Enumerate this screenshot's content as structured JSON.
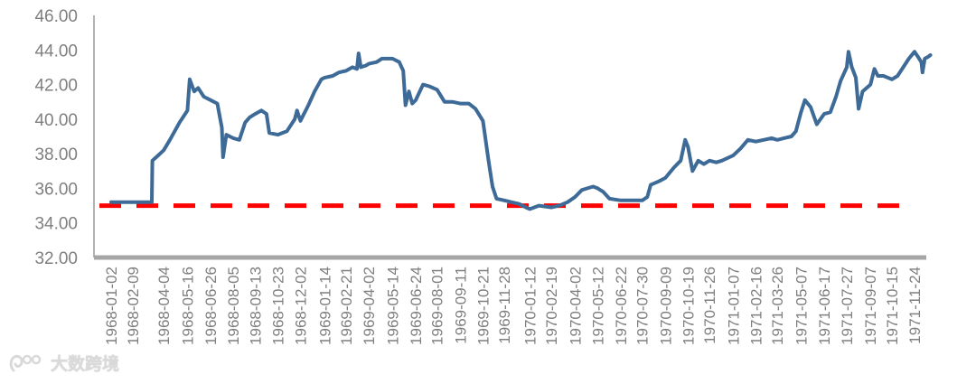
{
  "chart_data": {
    "type": "line",
    "title": "",
    "xlabel": "",
    "ylabel": "",
    "ylim": [
      32,
      46
    ],
    "y_ticks": [
      "32.00",
      "34.00",
      "36.00",
      "38.00",
      "40.00",
      "42.00",
      "44.00",
      "46.00"
    ],
    "x_ticks": [
      "1968-01-02",
      "1968-02-09",
      "1968-04-04",
      "1968-05-16",
      "1968-06-26",
      "1968-08-05",
      "1968-09-13",
      "1968-10-23",
      "1968-12-02",
      "1969-01-14",
      "1969-02-21",
      "1969-04-02",
      "1969-05-14",
      "1969-06-24",
      "1969-08-01",
      "1969-09-11",
      "1969-10-21",
      "1969-11-28",
      "1970-01-12",
      "1970-02-19",
      "1970-04-02",
      "1970-05-12",
      "1970-06-22",
      "1970-07-30",
      "1970-09-09",
      "1970-10-19",
      "1970-11-26",
      "1971-01-07",
      "1971-02-16",
      "1971-03-26",
      "1971-05-07",
      "1971-06-17",
      "1971-07-27",
      "1971-09-07",
      "1971-10-15",
      "1971-11-24"
    ],
    "grid": false,
    "legend": "none",
    "series": [
      {
        "color": "#3d6a96",
        "points": [
          [
            "1968-01-02",
            35.2
          ],
          [
            "1968-03-01",
            35.2
          ],
          [
            "1968-03-14",
            35.2
          ],
          [
            "1968-03-15",
            37.6
          ],
          [
            "1968-03-25",
            37.9
          ],
          [
            "1968-04-04",
            38.2
          ],
          [
            "1968-04-15",
            38.8
          ],
          [
            "1968-05-02",
            39.8
          ],
          [
            "1968-05-16",
            40.5
          ],
          [
            "1968-05-20",
            42.3
          ],
          [
            "1968-05-28",
            41.6
          ],
          [
            "1968-06-04",
            41.8
          ],
          [
            "1968-06-14",
            41.3
          ],
          [
            "1968-06-26",
            41.1
          ],
          [
            "1968-07-08",
            40.9
          ],
          [
            "1968-07-16",
            39.5
          ],
          [
            "1968-07-18",
            37.8
          ],
          [
            "1968-07-24",
            39.1
          ],
          [
            "1968-08-05",
            38.9
          ],
          [
            "1968-08-16",
            38.8
          ],
          [
            "1968-08-26",
            39.8
          ],
          [
            "1968-09-03",
            40.1
          ],
          [
            "1968-09-13",
            40.3
          ],
          [
            "1968-09-24",
            40.5
          ],
          [
            "1968-10-03",
            40.3
          ],
          [
            "1968-10-08",
            39.2
          ],
          [
            "1968-10-23",
            39.1
          ],
          [
            "1968-11-08",
            39.3
          ],
          [
            "1968-11-22",
            40.0
          ],
          [
            "1968-11-26",
            40.5
          ],
          [
            "1968-12-02",
            39.9
          ],
          [
            "1968-12-16",
            40.8
          ],
          [
            "1968-12-27",
            41.6
          ],
          [
            "1969-01-08",
            42.3
          ],
          [
            "1969-01-14",
            42.4
          ],
          [
            "1969-01-28",
            42.5
          ],
          [
            "1969-02-08",
            42.7
          ],
          [
            "1969-02-21",
            42.8
          ],
          [
            "1969-03-04",
            43.0
          ],
          [
            "1969-03-12",
            42.9
          ],
          [
            "1969-03-15",
            43.8
          ],
          [
            "1969-03-19",
            43.0
          ],
          [
            "1969-03-28",
            43.1
          ],
          [
            "1969-04-02",
            43.2
          ],
          [
            "1969-04-16",
            43.3
          ],
          [
            "1969-04-25",
            43.5
          ],
          [
            "1969-05-05",
            43.5
          ],
          [
            "1969-05-14",
            43.5
          ],
          [
            "1969-05-26",
            43.3
          ],
          [
            "1969-06-02",
            42.8
          ],
          [
            "1969-06-06",
            40.8
          ],
          [
            "1969-06-12",
            41.6
          ],
          [
            "1969-06-18",
            40.9
          ],
          [
            "1969-06-24",
            41.1
          ],
          [
            "1969-07-07",
            42.0
          ],
          [
            "1969-07-18",
            41.9
          ],
          [
            "1969-08-01",
            41.7
          ],
          [
            "1969-08-14",
            41.0
          ],
          [
            "1969-08-28",
            41.0
          ],
          [
            "1969-09-11",
            40.9
          ],
          [
            "1969-09-26",
            40.9
          ],
          [
            "1969-10-08",
            40.6
          ],
          [
            "1969-10-21",
            39.9
          ],
          [
            "1969-10-31",
            37.6
          ],
          [
            "1969-11-07",
            36.1
          ],
          [
            "1969-11-14",
            35.4
          ],
          [
            "1969-11-28",
            35.3
          ],
          [
            "1969-12-10",
            35.2
          ],
          [
            "1969-12-24",
            35.1
          ],
          [
            "1970-01-05",
            34.9
          ],
          [
            "1970-01-12",
            34.8
          ],
          [
            "1970-01-28",
            35.0
          ],
          [
            "1970-02-19",
            34.9
          ],
          [
            "1970-03-05",
            35.0
          ],
          [
            "1970-03-20",
            35.2
          ],
          [
            "1970-04-02",
            35.5
          ],
          [
            "1970-04-14",
            35.9
          ],
          [
            "1970-04-24",
            36.0
          ],
          [
            "1970-05-04",
            36.1
          ],
          [
            "1970-05-12",
            36.0
          ],
          [
            "1970-05-22",
            35.8
          ],
          [
            "1970-06-02",
            35.4
          ],
          [
            "1970-06-22",
            35.3
          ],
          [
            "1970-07-10",
            35.3
          ],
          [
            "1970-07-30",
            35.3
          ],
          [
            "1970-08-08",
            35.5
          ],
          [
            "1970-08-14",
            36.2
          ],
          [
            "1970-08-28",
            36.4
          ],
          [
            "1970-09-09",
            36.6
          ],
          [
            "1970-09-24",
            37.2
          ],
          [
            "1970-10-06",
            37.6
          ],
          [
            "1970-10-14",
            38.8
          ],
          [
            "1970-10-19",
            38.4
          ],
          [
            "1970-10-27",
            37.0
          ],
          [
            "1970-11-06",
            37.6
          ],
          [
            "1970-11-16",
            37.4
          ],
          [
            "1970-11-26",
            37.6
          ],
          [
            "1970-12-08",
            37.5
          ],
          [
            "1970-12-18",
            37.6
          ],
          [
            "1971-01-07",
            37.9
          ],
          [
            "1971-01-20",
            38.3
          ],
          [
            "1971-02-02",
            38.8
          ],
          [
            "1971-02-16",
            38.7
          ],
          [
            "1971-03-02",
            38.8
          ],
          [
            "1971-03-16",
            38.9
          ],
          [
            "1971-03-26",
            38.8
          ],
          [
            "1971-04-07",
            38.9
          ],
          [
            "1971-04-20",
            39.0
          ],
          [
            "1971-04-28",
            39.3
          ],
          [
            "1971-05-07",
            40.4
          ],
          [
            "1971-05-14",
            41.1
          ],
          [
            "1971-05-24",
            40.7
          ],
          [
            "1971-06-04",
            39.7
          ],
          [
            "1971-06-17",
            40.3
          ],
          [
            "1971-06-28",
            40.4
          ],
          [
            "1971-07-08",
            41.3
          ],
          [
            "1971-07-16",
            42.2
          ],
          [
            "1971-07-27",
            43.0
          ],
          [
            "1971-07-30",
            43.9
          ],
          [
            "1971-08-05",
            43.0
          ],
          [
            "1971-08-12",
            42.4
          ],
          [
            "1971-08-17",
            40.6
          ],
          [
            "1971-08-24",
            41.6
          ],
          [
            "1971-09-07",
            42.0
          ],
          [
            "1971-09-14",
            42.9
          ],
          [
            "1971-09-20",
            42.5
          ],
          [
            "1971-09-30",
            42.5
          ],
          [
            "1971-10-15",
            42.3
          ],
          [
            "1971-10-25",
            42.5
          ],
          [
            "1971-11-04",
            43.0
          ],
          [
            "1971-11-14",
            43.5
          ],
          [
            "1971-11-24",
            43.9
          ],
          [
            "1971-11-30",
            43.6
          ],
          [
            "1971-12-06",
            43.3
          ],
          [
            "1971-12-08",
            42.7
          ],
          [
            "1971-12-12",
            43.5
          ],
          [
            "1971-12-18",
            43.6
          ],
          [
            "1971-12-22",
            43.7
          ]
        ]
      }
    ],
    "reference_lines": [
      {
        "value": 35.0,
        "style": "dashed",
        "color": "#ff0000"
      }
    ]
  },
  "watermark": {
    "text": "大数跨境"
  }
}
